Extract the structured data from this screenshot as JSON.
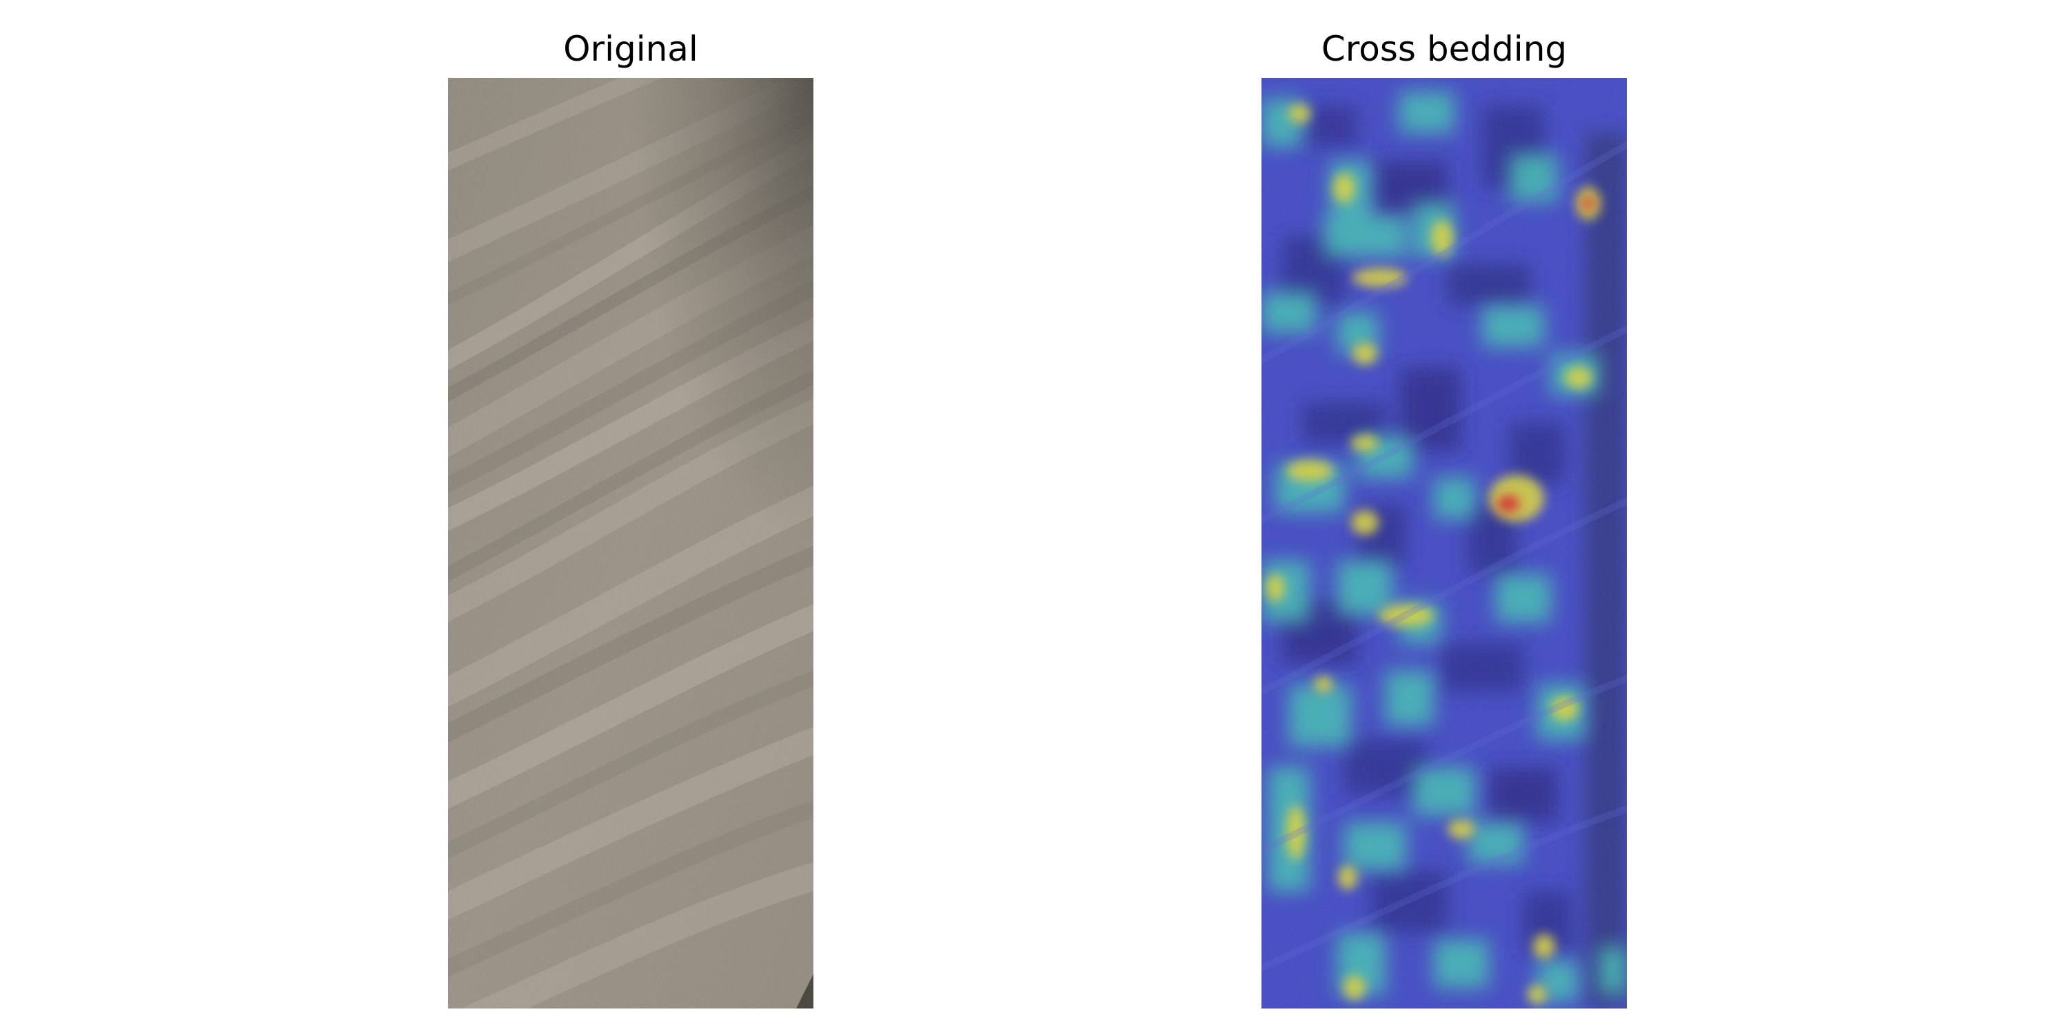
{
  "panels": [
    {
      "title": "Original",
      "image": "rock-core-photo-cross-bedding"
    },
    {
      "title": "Cross bedding",
      "image": "attention-heatmap-overlay"
    }
  ],
  "colors": {
    "rock_base": "#8f8677",
    "rock_light": "#aea596",
    "rock_dark": "#6f675a",
    "heat_low": "#3a3fbf",
    "heat_mid": "#3fc8b4",
    "heat_high": "#e8d23a",
    "heat_peak": "#d8262a"
  }
}
